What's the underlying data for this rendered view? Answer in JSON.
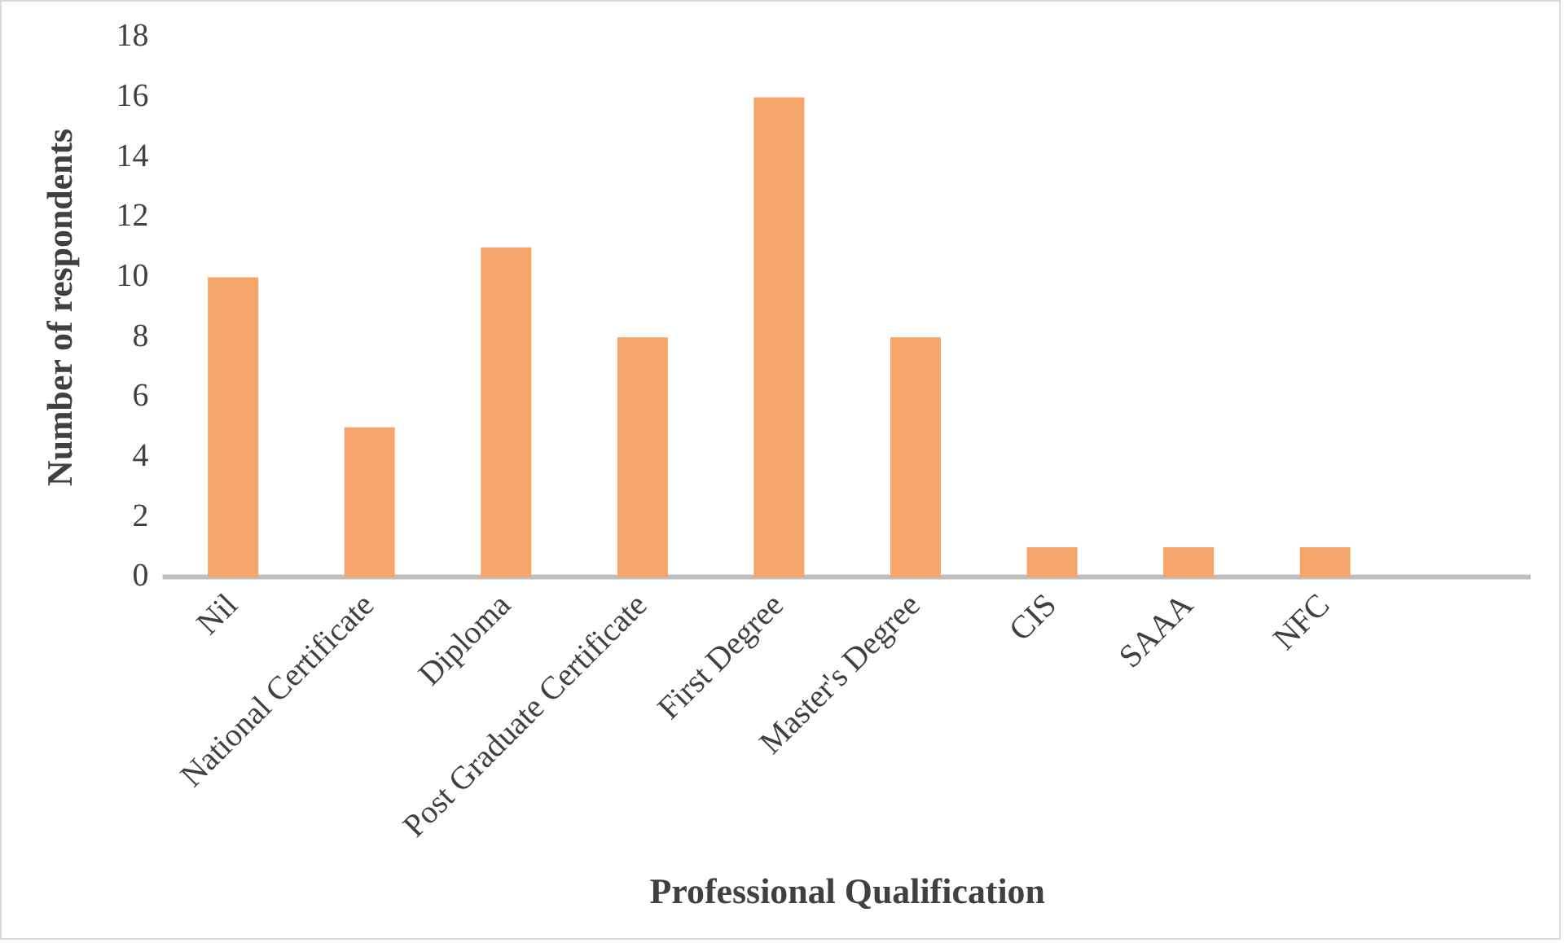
{
  "chart_data": {
    "type": "bar",
    "xlabel": "Professional Qualification",
    "ylabel": "Number of respondents",
    "categories": [
      "Nil",
      "National Certificate",
      "Diploma",
      "Post Graduate Certificate",
      "First Degree",
      "Master's Degree",
      "CIS",
      "SAAA",
      "NFC",
      null
    ],
    "values": [
      10,
      5,
      11,
      8,
      16,
      8,
      1,
      1,
      1,
      null
    ],
    "color": "#f5a46a",
    "ylim": [
      0,
      18
    ],
    "yticks": [
      0,
      2,
      4,
      6,
      8,
      10,
      12,
      14,
      16,
      18
    ],
    "grid": false,
    "legend": false
  }
}
